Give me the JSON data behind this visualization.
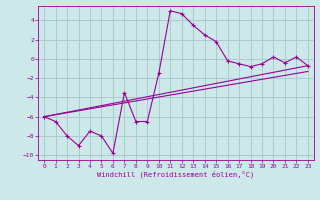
{
  "xlabel": "Windchill (Refroidissement éolien,°C)",
  "background_color": "#cce8e8",
  "grid_color": "#aacccc",
  "line_color": "#990099",
  "xlim": [
    -0.5,
    23.5
  ],
  "ylim": [
    -10.5,
    5.5
  ],
  "xticks": [
    0,
    1,
    2,
    3,
    4,
    5,
    6,
    7,
    8,
    9,
    10,
    11,
    12,
    13,
    14,
    15,
    16,
    17,
    18,
    19,
    20,
    21,
    22,
    23
  ],
  "yticks": [
    -10,
    -8,
    -6,
    -4,
    -2,
    0,
    2,
    4
  ],
  "series1_x": [
    0,
    1,
    2,
    3,
    4,
    5,
    6,
    7,
    8,
    9,
    10,
    11,
    12,
    13,
    14,
    15,
    16,
    17,
    18,
    19,
    20,
    21,
    22,
    23
  ],
  "series1_y": [
    -6.0,
    -6.5,
    -8.0,
    -9.0,
    -7.5,
    -8.0,
    -9.8,
    -3.5,
    -6.5,
    -6.5,
    -1.5,
    5.0,
    4.7,
    3.5,
    2.5,
    1.8,
    -0.2,
    -0.5,
    -0.8,
    -0.5,
    0.2,
    -0.4,
    0.2,
    -0.7
  ],
  "series2_x": [
    0,
    23
  ],
  "series2_y": [
    -6.0,
    -0.7
  ],
  "series3_x": [
    0,
    23
  ],
  "series3_y": [
    -6.0,
    -1.3
  ],
  "figsize": [
    3.2,
    2.0
  ],
  "dpi": 100
}
